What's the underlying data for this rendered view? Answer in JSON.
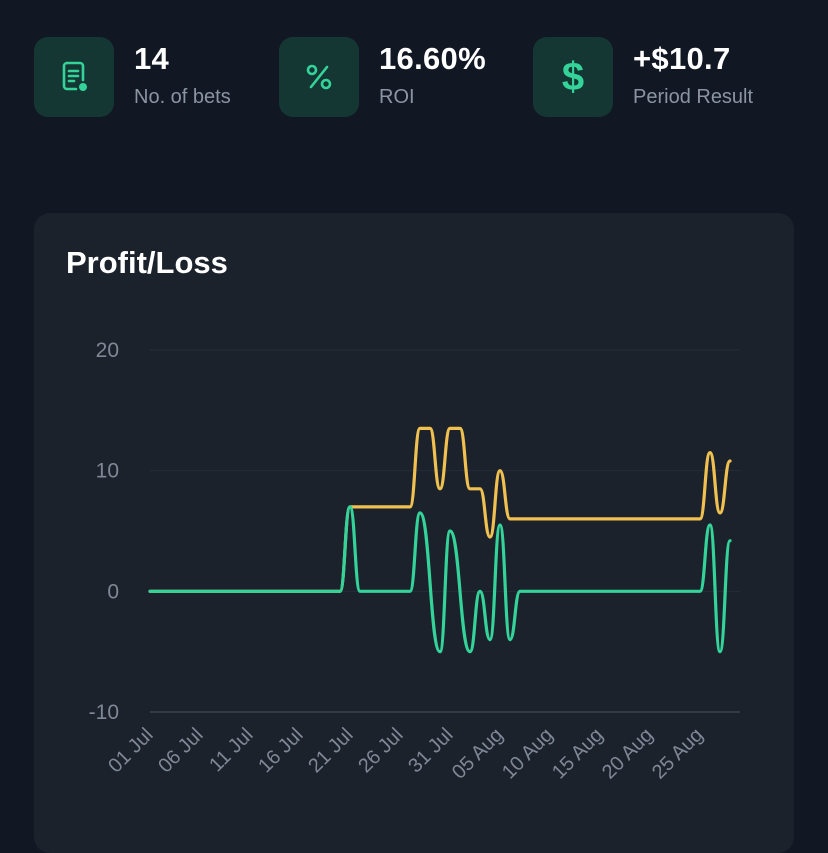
{
  "stats": [
    {
      "value": "14",
      "label": "No. of bets",
      "icon": "bet-slip-icon"
    },
    {
      "value": "16.60%",
      "label": "ROI",
      "icon": "percent-icon"
    },
    {
      "value": "+$10.7",
      "label": "Period Result",
      "icon": "dollar-icon"
    }
  ],
  "card": {
    "title": "Profit/Loss"
  },
  "colors": {
    "background": "#111824",
    "card": "#1b222c",
    "icon_tile": "#153733",
    "accent_green": "#34d399",
    "accent_yellow": "#f0c050",
    "muted_text": "#8b94a2"
  },
  "chart_data": {
    "type": "line",
    "title": "Profit/Loss",
    "xlabel": "",
    "ylabel": "",
    "x_ticks": [
      "01 Jul",
      "06 Jul",
      "11 Jul",
      "16 Jul",
      "21 Jul",
      "26 Jul",
      "31 Jul",
      "05 Aug",
      "10 Aug",
      "15 Aug",
      "20 Aug",
      "25 Aug"
    ],
    "y_ticks": [
      20,
      10,
      0,
      -10
    ],
    "ylim": [
      -10,
      20
    ],
    "x_range": [
      "2024-07-01",
      "2024-08-29"
    ],
    "grid": "horizontal",
    "series": [
      {
        "color": "#f0c050",
        "points": [
          [
            "2024-07-01",
            0
          ],
          [
            "2024-07-20",
            0
          ],
          [
            "2024-07-21",
            7
          ],
          [
            "2024-07-27",
            7
          ],
          [
            "2024-07-28",
            13.5
          ],
          [
            "2024-07-29",
            13.5
          ],
          [
            "2024-07-30",
            8.5
          ],
          [
            "2024-07-31",
            13.5
          ],
          [
            "2024-08-01",
            13.5
          ],
          [
            "2024-08-02",
            8.5
          ],
          [
            "2024-08-03",
            8.5
          ],
          [
            "2024-08-04",
            4.5
          ],
          [
            "2024-08-05",
            10
          ],
          [
            "2024-08-06",
            6
          ],
          [
            "2024-08-25",
            6
          ],
          [
            "2024-08-26",
            11.5
          ],
          [
            "2024-08-27",
            6.5
          ],
          [
            "2024-08-28",
            10.8
          ]
        ]
      },
      {
        "color": "#34d399",
        "points": [
          [
            "2024-07-01",
            0
          ],
          [
            "2024-07-20",
            0
          ],
          [
            "2024-07-21",
            7
          ],
          [
            "2024-07-22",
            0
          ],
          [
            "2024-07-27",
            0
          ],
          [
            "2024-07-28",
            6.5
          ],
          [
            "2024-07-30",
            -5
          ],
          [
            "2024-07-31",
            5
          ],
          [
            "2024-08-02",
            -5
          ],
          [
            "2024-08-03",
            0
          ],
          [
            "2024-08-04",
            -4
          ],
          [
            "2024-08-05",
            5.5
          ],
          [
            "2024-08-06",
            -4
          ],
          [
            "2024-08-07",
            0
          ],
          [
            "2024-08-25",
            0
          ],
          [
            "2024-08-26",
            5.5
          ],
          [
            "2024-08-27",
            -5
          ],
          [
            "2024-08-28",
            4.2
          ]
        ]
      }
    ]
  }
}
